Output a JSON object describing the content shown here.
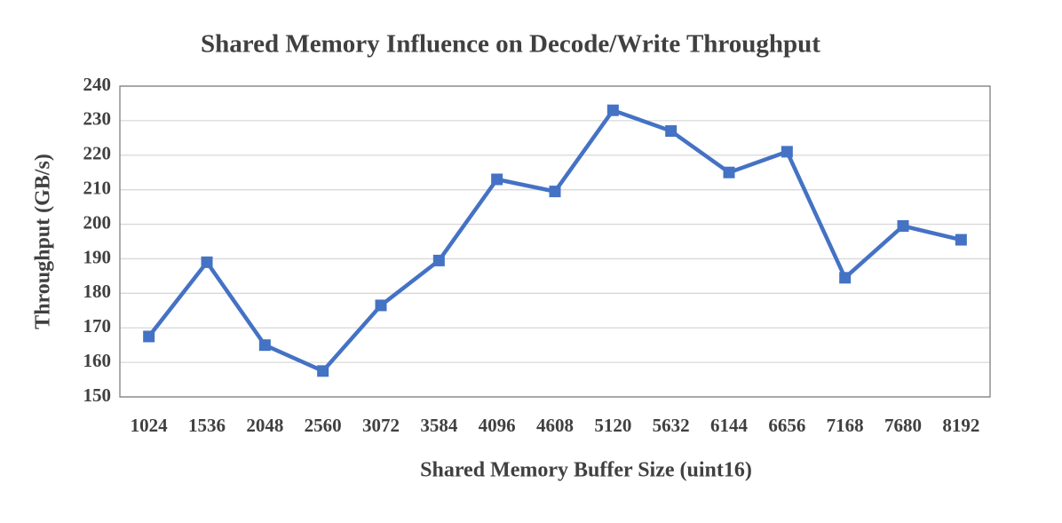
{
  "chart_data": {
    "type": "line",
    "title": "Shared Memory Influence on Decode/Write Throughput",
    "x_label": "Shared Memory Buffer Size (uint16)",
    "y_label": "Throughput (GB/s)",
    "categories": [
      "1024",
      "1536",
      "2048",
      "2560",
      "3072",
      "3584",
      "4096",
      "4608",
      "5120",
      "5632",
      "6144",
      "6656",
      "7168",
      "7680",
      "8192"
    ],
    "series": [
      {
        "name": "Throughput",
        "color": "#4472c4",
        "values": [
          167.5,
          189,
          165,
          157.5,
          176.5,
          189.5,
          213,
          209.5,
          233,
          227,
          215,
          221,
          184.5,
          199.5,
          195.5
        ]
      }
    ],
    "ylim": [
      150,
      240
    ],
    "yticks": [
      150,
      160,
      170,
      180,
      190,
      200,
      210,
      220,
      230,
      240
    ],
    "grid": true
  }
}
